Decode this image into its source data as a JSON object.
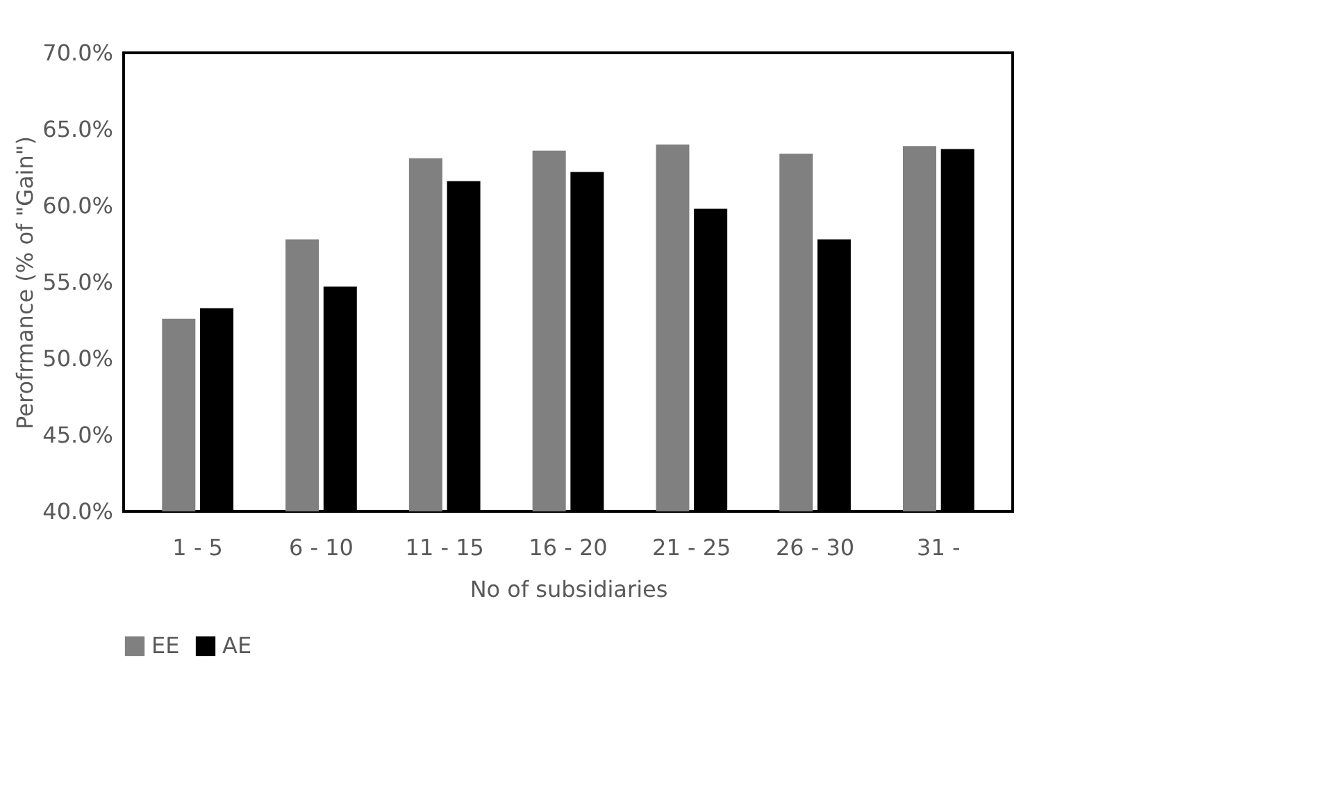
{
  "chart_data": {
    "type": "bar",
    "xlabel": "No of subsidiaries",
    "ylabel": "Perofrmance (% of  \"Gain\")",
    "categories": [
      "1 - 5",
      "6 - 10",
      "11 - 15",
      "16 - 20",
      "21 - 25",
      "26 - 30",
      "31 -"
    ],
    "series": [
      {
        "name": "EE",
        "color": "#808080",
        "values": [
          52.6,
          57.8,
          63.1,
          63.6,
          64.0,
          63.4,
          63.9
        ]
      },
      {
        "name": "AE",
        "color": "#000000",
        "values": [
          53.3,
          54.7,
          61.6,
          62.2,
          59.8,
          57.8,
          63.7
        ]
      }
    ],
    "ylim": [
      40,
      70
    ],
    "yticks": [
      {
        "value": 40,
        "label": "40.0%"
      },
      {
        "value": 45,
        "label": "45.0%"
      },
      {
        "value": 50,
        "label": "50.0%"
      },
      {
        "value": 55,
        "label": "55.0%"
      },
      {
        "value": 60,
        "label": "60.0%"
      },
      {
        "value": 65,
        "label": "65.0%"
      },
      {
        "value": 70,
        "label": "70.0%"
      }
    ],
    "grid": false,
    "legend": "bottom"
  }
}
